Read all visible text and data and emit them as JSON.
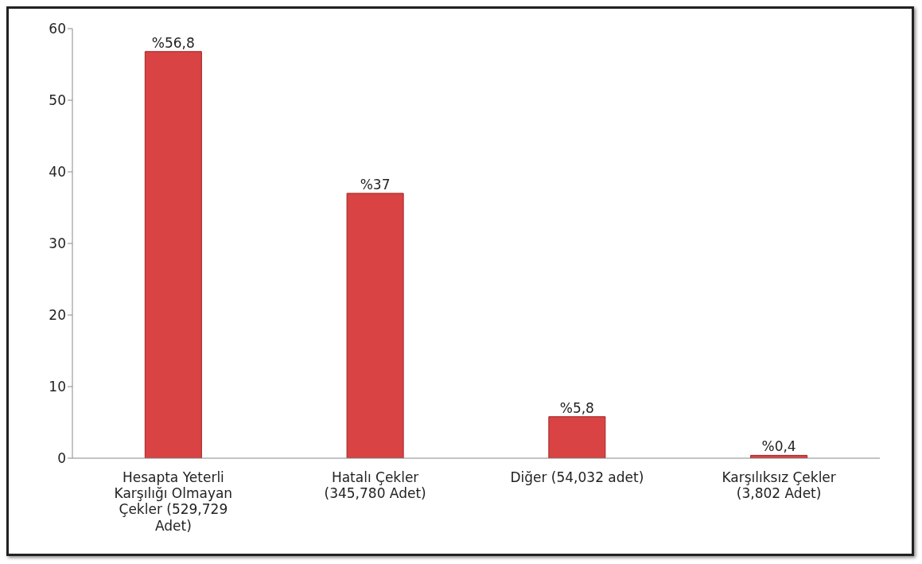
{
  "chart_data": {
    "type": "bar",
    "categories": [
      "Hesapta Yeterli Karşılığı Olmayan Çekler (529,729 Adet)",
      "Hatalı Çekler (345,780 Adet)",
      "Diğer (54,032 adet)",
      "Karşılıksız Çekler (3,802 Adet)"
    ],
    "values": [
      56.8,
      37,
      5.8,
      0.4
    ],
    "value_labels": [
      "%56,8",
      "%37",
      "%5,8",
      "%0,4"
    ],
    "color": "#d94343",
    "ylim": [
      0,
      60
    ],
    "yticks": [
      0,
      10,
      20,
      30,
      40,
      50,
      60
    ],
    "grid": false,
    "legend": false
  }
}
